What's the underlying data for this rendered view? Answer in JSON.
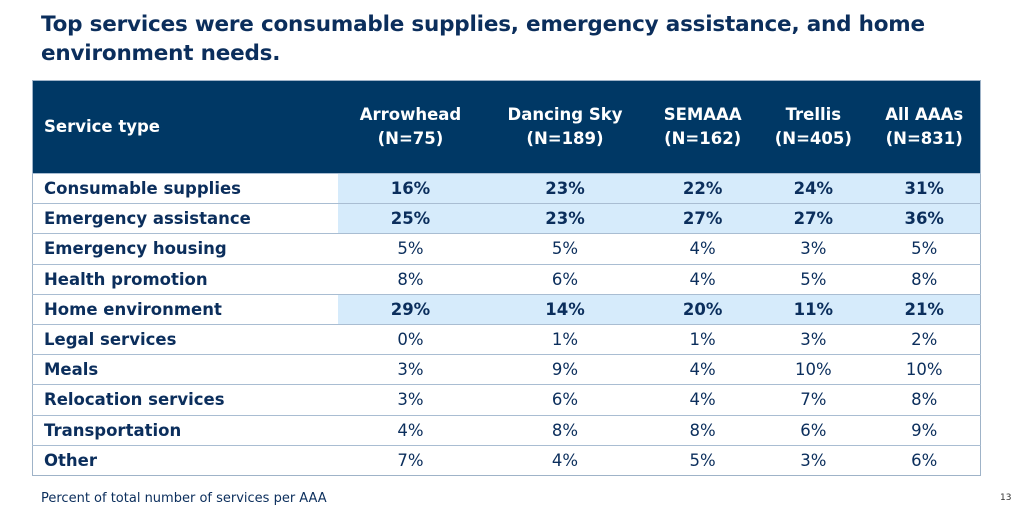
{
  "title": "Top services were consumable supplies, emergency assistance, and home environment needs.",
  "table": {
    "header_first": "Service type",
    "columns": [
      {
        "name": "Arrowhead",
        "n": "(N=75)"
      },
      {
        "name": "Dancing Sky",
        "n": "(N=189)"
      },
      {
        "name": "SEMAAA",
        "n": "(N=162)"
      },
      {
        "name": "Trellis",
        "n": "(N=405)"
      },
      {
        "name": "All AAAs",
        "n": "(N=831)"
      }
    ],
    "rows": [
      {
        "label": "Consumable supplies",
        "highlight": true,
        "values": [
          "16%",
          "23%",
          "22%",
          "24%",
          "31%"
        ]
      },
      {
        "label": "Emergency assistance",
        "highlight": true,
        "values": [
          "25%",
          "23%",
          "27%",
          "27%",
          "36%"
        ]
      },
      {
        "label": "Emergency housing",
        "highlight": false,
        "values": [
          "5%",
          "5%",
          "4%",
          "3%",
          "5%"
        ]
      },
      {
        "label": "Health promotion",
        "highlight": false,
        "values": [
          "8%",
          "6%",
          "4%",
          "5%",
          "8%"
        ]
      },
      {
        "label": "Home environment",
        "highlight": true,
        "values": [
          "29%",
          "14%",
          "20%",
          "11%",
          "21%"
        ]
      },
      {
        "label": "Legal services",
        "highlight": false,
        "values": [
          "0%",
          "1%",
          "1%",
          "3%",
          "2%"
        ]
      },
      {
        "label": "Meals",
        "highlight": false,
        "values": [
          "3%",
          "9%",
          "4%",
          "10%",
          "10%"
        ]
      },
      {
        "label": "Relocation services",
        "highlight": false,
        "values": [
          "3%",
          "6%",
          "4%",
          "7%",
          "8%"
        ]
      },
      {
        "label": "Transportation",
        "highlight": false,
        "values": [
          "4%",
          "8%",
          "8%",
          "6%",
          "9%"
        ]
      },
      {
        "label": "Other",
        "highlight": false,
        "values": [
          "7%",
          "4%",
          "5%",
          "3%",
          "6%"
        ]
      }
    ]
  },
  "footnote": "Percent of total number of services per AAA",
  "page_number": "13",
  "colors": {
    "header_bg": "#003865",
    "highlight_bg": "#d6ebfb",
    "text": "#0b2e5c"
  }
}
